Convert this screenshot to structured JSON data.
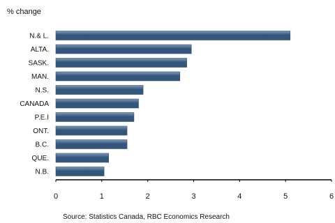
{
  "chart_data": {
    "type": "bar",
    "orientation": "horizontal",
    "title": "",
    "ylabel": "% change",
    "xlabel": "",
    "categories": [
      "N.& L.",
      "ALTA.",
      "SASK.",
      "MAN.",
      "N.S.",
      "CANADA",
      "P.E.I",
      "ONT.",
      "B.C.",
      "QUE.",
      "N.B."
    ],
    "values": [
      5.1,
      2.95,
      2.85,
      2.7,
      1.9,
      1.8,
      1.7,
      1.55,
      1.55,
      1.15,
      1.05
    ],
    "xlim": [
      0,
      6
    ],
    "xticks": [
      "0",
      "1",
      "2",
      "3",
      "4",
      "5",
      "6"
    ],
    "grid": false,
    "legend": "none",
    "source": "Source: Statistics Canada, RBC Economics Research",
    "colors": {
      "bar": "#34567a",
      "bar_highlight": "#7e99b7",
      "axis": "#000000"
    }
  }
}
